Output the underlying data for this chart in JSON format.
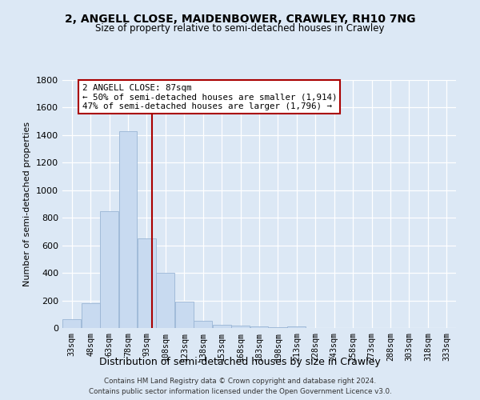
{
  "title": "2, ANGELL CLOSE, MAIDENBOWER, CRAWLEY, RH10 7NG",
  "subtitle": "Size of property relative to semi-detached houses in Crawley",
  "xlabel": "Distribution of semi-detached houses by size in Crawley",
  "ylabel": "Number of semi-detached properties",
  "bar_color": "#c8daf0",
  "bar_edge_color": "#9ab5d5",
  "marker_color": "#aa0000",
  "categories": [
    "33sqm",
    "48sqm",
    "63sqm",
    "78sqm",
    "93sqm",
    "108sqm",
    "123sqm",
    "138sqm",
    "153sqm",
    "168sqm",
    "183sqm",
    "198sqm",
    "213sqm",
    "228sqm",
    "243sqm",
    "258sqm",
    "273sqm",
    "288sqm",
    "303sqm",
    "318sqm",
    "333sqm"
  ],
  "values": [
    65,
    180,
    850,
    1430,
    650,
    400,
    190,
    55,
    25,
    15,
    10,
    8,
    10,
    0,
    0,
    0,
    0,
    0,
    0,
    0,
    0
  ],
  "ylim": [
    0,
    1800
  ],
  "yticks": [
    0,
    200,
    400,
    600,
    800,
    1000,
    1200,
    1400,
    1600,
    1800
  ],
  "red_line_x": 4.3,
  "annotation_title": "2 ANGELL CLOSE: 87sqm",
  "annotation_line1": "← 50% of semi-detached houses are smaller (1,914)",
  "annotation_line2": "47% of semi-detached houses are larger (1,796) →",
  "footer_line1": "Contains HM Land Registry data © Crown copyright and database right 2024.",
  "footer_line2": "Contains public sector information licensed under the Open Government Licence v3.0.",
  "background_color": "#dce8f5",
  "plot_bg_color": "#dce8f5",
  "grid_color": "#ffffff"
}
